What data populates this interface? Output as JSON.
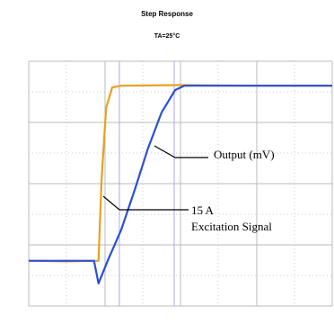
{
  "chart_data": {
    "type": "line",
    "title": "Step Response",
    "subtitle": "TA=25°C",
    "annotations": [
      "Output (mV)",
      "15 A",
      "Excitation Signal"
    ],
    "xlim": [
      0,
      4
    ],
    "ylim": [
      0,
      4
    ],
    "series": [
      {
        "color": "#e8a020",
        "x": [
          0,
          0.5,
          0.92,
          0.96,
          1.02,
          1.1,
          1.22,
          2,
          3,
          4
        ],
        "values": [
          0.74,
          0.73,
          0.74,
          2.06,
          3.24,
          3.57,
          3.6,
          3.61,
          3.6,
          3.6
        ]
      },
      {
        "color": "#2a4fd8",
        "x": [
          0,
          0.5,
          0.86,
          0.92,
          1.04,
          1.22,
          1.4,
          1.57,
          1.75,
          1.93,
          2.05,
          3,
          4
        ],
        "values": [
          0.74,
          0.74,
          0.74,
          0.37,
          0.74,
          1.25,
          1.91,
          2.57,
          3.16,
          3.53,
          3.6,
          3.6,
          3.6
        ]
      }
    ]
  }
}
